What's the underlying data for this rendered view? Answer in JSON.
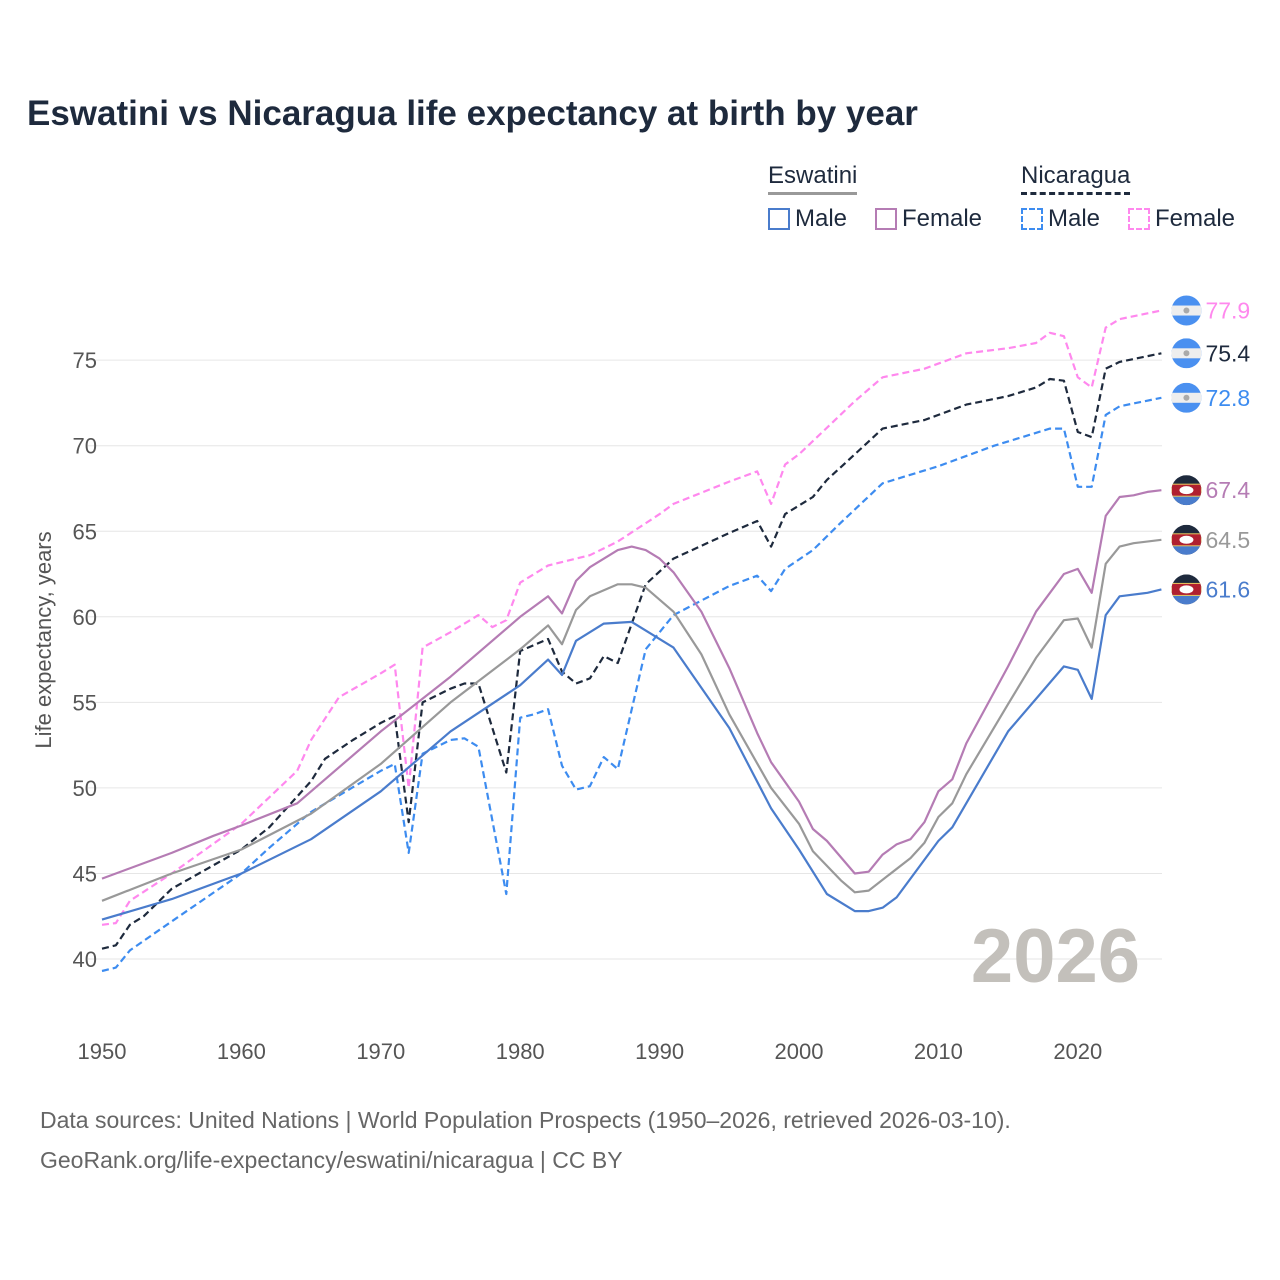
{
  "chart_data": {
    "type": "line",
    "title": "Eswatini vs Nicaragua life expectancy at birth by year",
    "xlabel": "",
    "ylabel": "Life expectancy, years",
    "xlim": [
      1950,
      2026
    ],
    "ylim": [
      37.5,
      79
    ],
    "x_ticks": [
      1950,
      1960,
      1970,
      1980,
      1990,
      2000,
      2010,
      2020
    ],
    "y_ticks": [
      40,
      45,
      50,
      55,
      60,
      65,
      70,
      75
    ],
    "grid": "horizontal",
    "watermark_year": "2026",
    "legend": {
      "placement": "top-right",
      "groups": [
        {
          "name": "Eswatini",
          "items": [
            "Male",
            "Female"
          ]
        },
        {
          "name": "Nicaragua",
          "items": [
            "Male",
            "Female"
          ]
        }
      ]
    },
    "series": [
      {
        "name": "Nicaragua Female",
        "country": "Nicaragua",
        "color": "#ff88ee",
        "dash": true,
        "end_label": "77.9",
        "points": [
          [
            1950,
            42.0
          ],
          [
            1951,
            42.1
          ],
          [
            1952,
            43.4
          ],
          [
            1955,
            45.0
          ],
          [
            1960,
            47.9
          ],
          [
            1964,
            51.0
          ],
          [
            1965,
            52.8
          ],
          [
            1967,
            55.3
          ],
          [
            1970,
            56.7
          ],
          [
            1971,
            57.2
          ],
          [
            1972,
            50.0
          ],
          [
            1973,
            58.2
          ],
          [
            1975,
            59.1
          ],
          [
            1977,
            60.1
          ],
          [
            1978,
            59.4
          ],
          [
            1979,
            59.8
          ],
          [
            1980,
            62.0
          ],
          [
            1982,
            63.0
          ],
          [
            1985,
            63.6
          ],
          [
            1987,
            64.4
          ],
          [
            1990,
            66.0
          ],
          [
            1991,
            66.6
          ],
          [
            1995,
            67.9
          ],
          [
            1997,
            68.5
          ],
          [
            1998,
            66.6
          ],
          [
            1999,
            68.9
          ],
          [
            2000,
            69.5
          ],
          [
            2004,
            72.6
          ],
          [
            2006,
            74.0
          ],
          [
            2009,
            74.5
          ],
          [
            2012,
            75.4
          ],
          [
            2015,
            75.7
          ],
          [
            2017,
            76.0
          ],
          [
            2018,
            76.6
          ],
          [
            2019,
            76.4
          ],
          [
            2020,
            74.0
          ],
          [
            2021,
            73.4
          ],
          [
            2022,
            76.9
          ],
          [
            2023,
            77.4
          ],
          [
            2026,
            77.9
          ]
        ]
      },
      {
        "name": "Nicaragua",
        "country": "Nicaragua",
        "color": "#1e2a3d",
        "dash": true,
        "end_label": "75.4",
        "points": [
          [
            1950,
            40.6
          ],
          [
            1951,
            40.8
          ],
          [
            1952,
            42.0
          ],
          [
            1953,
            42.5
          ],
          [
            1955,
            44.1
          ],
          [
            1960,
            46.4
          ],
          [
            1962,
            47.7
          ],
          [
            1965,
            50.4
          ],
          [
            1966,
            51.7
          ],
          [
            1968,
            52.8
          ],
          [
            1970,
            53.8
          ],
          [
            1971,
            54.2
          ],
          [
            1972,
            48.0
          ],
          [
            1973,
            55.0
          ],
          [
            1975,
            55.8
          ],
          [
            1976,
            56.1
          ],
          [
            1977,
            56.1
          ],
          [
            1979,
            50.9
          ],
          [
            1980,
            58.0
          ],
          [
            1982,
            58.7
          ],
          [
            1983,
            56.8
          ],
          [
            1984,
            56.1
          ],
          [
            1985,
            56.4
          ],
          [
            1986,
            57.7
          ],
          [
            1987,
            57.3
          ],
          [
            1989,
            61.9
          ],
          [
            1991,
            63.4
          ],
          [
            1995,
            64.9
          ],
          [
            1997,
            65.6
          ],
          [
            1998,
            64.1
          ],
          [
            1999,
            66.0
          ],
          [
            2001,
            67.0
          ],
          [
            2002,
            68.0
          ],
          [
            2004,
            69.5
          ],
          [
            2006,
            71.0
          ],
          [
            2009,
            71.5
          ],
          [
            2012,
            72.4
          ],
          [
            2015,
            72.9
          ],
          [
            2017,
            73.4
          ],
          [
            2018,
            73.9
          ],
          [
            2019,
            73.8
          ],
          [
            2020,
            70.8
          ],
          [
            2021,
            70.5
          ],
          [
            2022,
            74.5
          ],
          [
            2023,
            74.9
          ],
          [
            2026,
            75.4
          ]
        ]
      },
      {
        "name": "Nicaragua Male",
        "country": "Nicaragua",
        "color": "#3d8cf0",
        "dash": true,
        "end_label": "72.8",
        "points": [
          [
            1950,
            39.3
          ],
          [
            1951,
            39.5
          ],
          [
            1952,
            40.5
          ],
          [
            1955,
            42.2
          ],
          [
            1960,
            45.0
          ],
          [
            1962,
            46.5
          ],
          [
            1965,
            48.6
          ],
          [
            1970,
            51.0
          ],
          [
            1971,
            51.4
          ],
          [
            1972,
            46.2
          ],
          [
            1973,
            52.0
          ],
          [
            1975,
            52.8
          ],
          [
            1976,
            52.9
          ],
          [
            1977,
            52.4
          ],
          [
            1979,
            43.8
          ],
          [
            1980,
            54.1
          ],
          [
            1981,
            54.3
          ],
          [
            1982,
            54.6
          ],
          [
            1983,
            51.3
          ],
          [
            1984,
            49.9
          ],
          [
            1985,
            50.1
          ],
          [
            1986,
            51.8
          ],
          [
            1987,
            51.1
          ],
          [
            1989,
            58.1
          ],
          [
            1991,
            60.1
          ],
          [
            1995,
            61.8
          ],
          [
            1997,
            62.4
          ],
          [
            1998,
            61.5
          ],
          [
            1999,
            62.8
          ],
          [
            2001,
            63.9
          ],
          [
            2003,
            65.5
          ],
          [
            2006,
            67.8
          ],
          [
            2010,
            68.8
          ],
          [
            2014,
            70.0
          ],
          [
            2018,
            71.0
          ],
          [
            2019,
            71.0
          ],
          [
            2020,
            67.6
          ],
          [
            2021,
            67.6
          ],
          [
            2022,
            71.8
          ],
          [
            2023,
            72.3
          ],
          [
            2026,
            72.8
          ]
        ]
      },
      {
        "name": "Eswatini Female",
        "country": "Eswatini",
        "color": "#b57cb4",
        "dash": false,
        "end_label": "67.4",
        "points": [
          [
            1950,
            44.7
          ],
          [
            1955,
            46.2
          ],
          [
            1958,
            47.2
          ],
          [
            1960,
            47.8
          ],
          [
            1964,
            49.1
          ],
          [
            1970,
            53.3
          ],
          [
            1975,
            56.5
          ],
          [
            1980,
            60.0
          ],
          [
            1982,
            61.2
          ],
          [
            1983,
            60.2
          ],
          [
            1984,
            62.1
          ],
          [
            1985,
            62.9
          ],
          [
            1987,
            63.9
          ],
          [
            1988,
            64.1
          ],
          [
            1989,
            63.9
          ],
          [
            1990,
            63.4
          ],
          [
            1991,
            62.6
          ],
          [
            1993,
            60.3
          ],
          [
            1995,
            57.0
          ],
          [
            1997,
            53.2
          ],
          [
            1998,
            51.5
          ],
          [
            2000,
            49.2
          ],
          [
            2001,
            47.6
          ],
          [
            2002,
            46.9
          ],
          [
            2004,
            45.0
          ],
          [
            2005,
            45.1
          ],
          [
            2006,
            46.1
          ],
          [
            2007,
            46.7
          ],
          [
            2008,
            47.0
          ],
          [
            2009,
            48.0
          ],
          [
            2010,
            49.8
          ],
          [
            2011,
            50.5
          ],
          [
            2012,
            52.6
          ],
          [
            2015,
            57.1
          ],
          [
            2017,
            60.3
          ],
          [
            2019,
            62.5
          ],
          [
            2020,
            62.8
          ],
          [
            2021,
            61.4
          ],
          [
            2022,
            65.9
          ],
          [
            2023,
            67.0
          ],
          [
            2024,
            67.1
          ],
          [
            2025,
            67.3
          ],
          [
            2026,
            67.4
          ]
        ]
      },
      {
        "name": "Eswatini",
        "country": "Eswatini",
        "color": "#999999",
        "dash": false,
        "end_label": "64.5",
        "points": [
          [
            1950,
            43.4
          ],
          [
            1955,
            45.0
          ],
          [
            1960,
            46.4
          ],
          [
            1965,
            48.5
          ],
          [
            1970,
            51.4
          ],
          [
            1975,
            55.0
          ],
          [
            1980,
            58.1
          ],
          [
            1982,
            59.5
          ],
          [
            1983,
            58.4
          ],
          [
            1984,
            60.4
          ],
          [
            1985,
            61.2
          ],
          [
            1987,
            61.9
          ],
          [
            1988,
            61.9
          ],
          [
            1989,
            61.7
          ],
          [
            1991,
            60.3
          ],
          [
            1993,
            57.8
          ],
          [
            1995,
            54.3
          ],
          [
            1998,
            50.0
          ],
          [
            2000,
            47.9
          ],
          [
            2001,
            46.3
          ],
          [
            2003,
            44.6
          ],
          [
            2004,
            43.9
          ],
          [
            2005,
            44.0
          ],
          [
            2008,
            45.9
          ],
          [
            2009,
            46.8
          ],
          [
            2010,
            48.3
          ],
          [
            2011,
            49.1
          ],
          [
            2012,
            50.8
          ],
          [
            2015,
            54.9
          ],
          [
            2017,
            57.6
          ],
          [
            2019,
            59.8
          ],
          [
            2020,
            59.9
          ],
          [
            2021,
            58.2
          ],
          [
            2022,
            63.1
          ],
          [
            2023,
            64.1
          ],
          [
            2024,
            64.3
          ],
          [
            2026,
            64.5
          ]
        ]
      },
      {
        "name": "Eswatini Male",
        "country": "Eswatini",
        "color": "#4a7ccc",
        "dash": false,
        "end_label": "61.6",
        "points": [
          [
            1950,
            42.3
          ],
          [
            1955,
            43.5
          ],
          [
            1960,
            45.0
          ],
          [
            1965,
            47.0
          ],
          [
            1970,
            49.8
          ],
          [
            1975,
            53.3
          ],
          [
            1980,
            56.0
          ],
          [
            1982,
            57.5
          ],
          [
            1983,
            56.6
          ],
          [
            1984,
            58.6
          ],
          [
            1986,
            59.6
          ],
          [
            1988,
            59.7
          ],
          [
            1991,
            58.2
          ],
          [
            1995,
            53.5
          ],
          [
            1998,
            48.8
          ],
          [
            2000,
            46.4
          ],
          [
            2002,
            43.8
          ],
          [
            2004,
            42.8
          ],
          [
            2005,
            42.8
          ],
          [
            2006,
            43.0
          ],
          [
            2007,
            43.6
          ],
          [
            2010,
            46.9
          ],
          [
            2011,
            47.7
          ],
          [
            2015,
            53.3
          ],
          [
            2019,
            57.1
          ],
          [
            2020,
            56.9
          ],
          [
            2021,
            55.2
          ],
          [
            2022,
            60.1
          ],
          [
            2023,
            61.2
          ],
          [
            2025,
            61.4
          ],
          [
            2026,
            61.6
          ]
        ]
      }
    ]
  },
  "legend": {
    "eswatini": "Eswatini",
    "nicaragua": "Nicaragua",
    "male": "Male",
    "female": "Female"
  },
  "source": {
    "line1": "Data sources: United Nations | World Population Prospects (1950–2026, retrieved 2026-03-10).",
    "line2": "GeoRank.org/life-expectancy/eswatini/nicaragua | CC BY"
  },
  "colors": {
    "nic_flag_blue": "#4a90f0",
    "esw_flag_dark": "#1e2a3d",
    "esw_flag_red": "#b02030"
  }
}
